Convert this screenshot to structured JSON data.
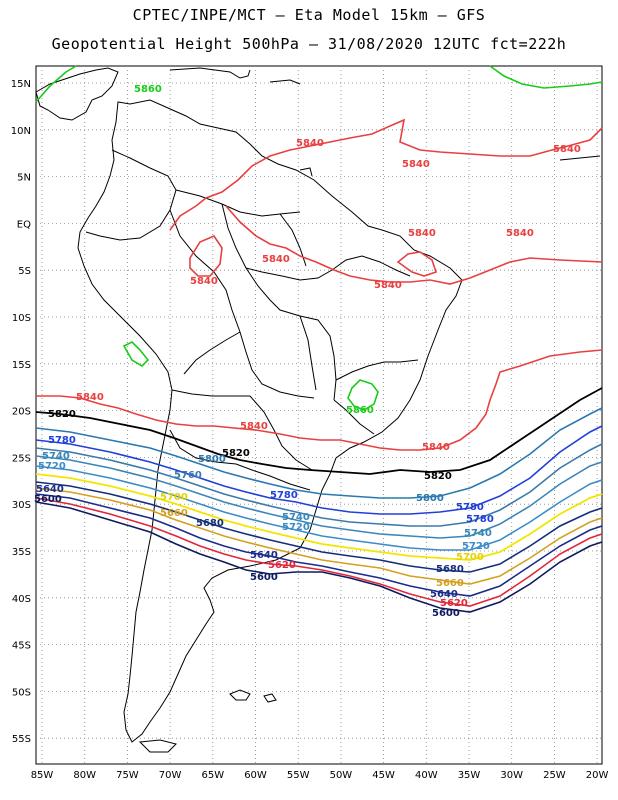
{
  "header": {
    "line1": "CPTEC/INPE/MCT –  Eta Model 15km – GFS",
    "line2": "Geopotential Height 500hPa – 31/08/2020 12UTC fct=222h"
  },
  "axes": {
    "lon_labels": [
      "85W",
      "80W",
      "75W",
      "70W",
      "65W",
      "60W",
      "55W",
      "50W",
      "45W",
      "40W",
      "35W",
      "30W",
      "25W",
      "20W"
    ],
    "lat_labels": [
      "15N",
      "10N",
      "5N",
      "EQ",
      "5S",
      "10S",
      "15S",
      "20S",
      "25S",
      "30S",
      "35S",
      "40S",
      "45S",
      "50S",
      "55S"
    ]
  },
  "colors": {
    "c5600": "#0d1a5e",
    "c5620": "#e0283c",
    "c5640": "#1a2c8a",
    "c5660": "#d4a020",
    "c5680": "#142e7a",
    "c5700": "#f2e600",
    "c5720": "#3c8cc8",
    "c5740": "#3a86b8",
    "c5760": "#3a7aaa",
    "c5780": "#2040d8",
    "c5800": "#2a78b0",
    "c5820": "#000000",
    "c5840": "#e84040",
    "c5860": "#18cc18",
    "land": "#000000",
    "grid": "#888888"
  },
  "contour_labels": {
    "l5860a": "5860",
    "l5860b": "5860",
    "l5840a": "5840",
    "l5840b": "5840",
    "l5840c": "5840",
    "l5840d": "5840",
    "l5840e": "5840",
    "l5840f": "5840",
    "l5840g": "5840",
    "l5840h": "5840",
    "l5840i": "5840",
    "l5840j": "5840",
    "l5840k": "5840",
    "l5840l": "5840",
    "l5820a": "5820",
    "l5820b": "5820",
    "l5820c": "5820",
    "l5800a": "5800",
    "l5800b": "5800",
    "l5780a": "5780",
    "l5780b": "5780",
    "l5780c": "5780",
    "l5780d": "5780",
    "l5760a": "5760",
    "l5760b": "5760",
    "l5740a": "5740",
    "l5740b": "5740",
    "l5740c": "5740",
    "l5720a": "5720",
    "l5720b": "5720",
    "l5720c": "5720",
    "l5700a": "5700",
    "l5700b": "5700",
    "l5680a": "5680",
    "l5680b": "5680",
    "l5660a": "5660",
    "l5660b": "5660",
    "l5640a": "5640",
    "l5640b": "5640",
    "l5640c": "5640",
    "l5620a": "5620",
    "l5620b": "5620",
    "l5600a": "5600",
    "l5600b": "5600",
    "l5600c": "5600"
  }
}
